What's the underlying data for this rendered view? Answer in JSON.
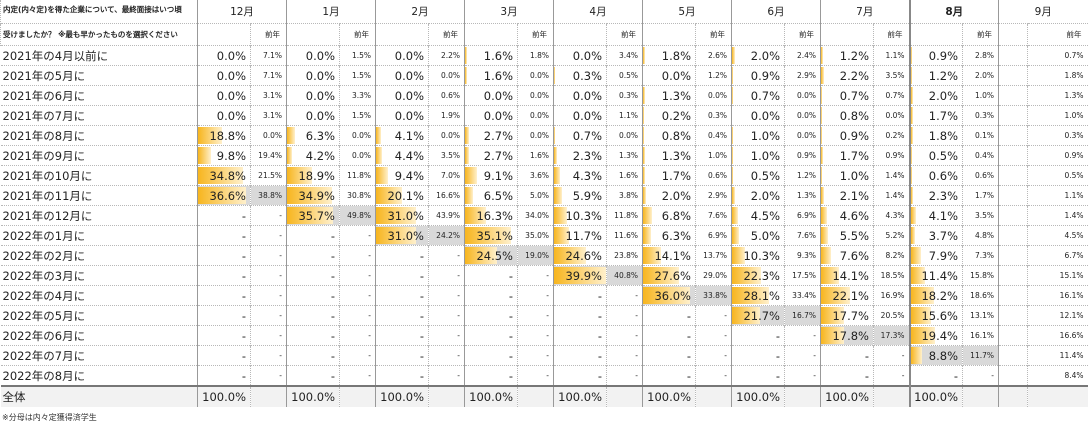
{
  "title": "内定(内々定)を得た企業について、最終面接はいつ頃",
  "subtitle": "受けましたか？ ※最も早かったものを選択ください",
  "prev_label": "前年",
  "months": [
    "12月",
    "1月",
    "2月",
    "3月",
    "4月",
    "5月",
    "6月",
    "7月",
    "8月",
    "9月"
  ],
  "highlight_month_index": 8,
  "bar_color": "#f7b51e",
  "shade_color": "#d9d9d9",
  "rows": [
    {
      "label": "2021年の4月以前に",
      "cells": [
        [
          "0.0%",
          "7.1%"
        ],
        [
          "0.0%",
          "1.5%"
        ],
        [
          "0.0%",
          "2.2%"
        ],
        [
          "1.6%",
          "1.8%"
        ],
        [
          "0.0%",
          "3.4%"
        ],
        [
          "1.8%",
          "2.6%"
        ],
        [
          "2.0%",
          "2.4%"
        ],
        [
          "1.2%",
          "1.1%"
        ],
        [
          "0.9%",
          "2.8%"
        ],
        [
          "",
          "0.7%"
        ]
      ]
    },
    {
      "label": "2021年の5月に",
      "cells": [
        [
          "0.0%",
          "7.1%"
        ],
        [
          "0.0%",
          "1.5%"
        ],
        [
          "0.0%",
          "0.0%"
        ],
        [
          "1.6%",
          "0.0%"
        ],
        [
          "0.3%",
          "0.5%"
        ],
        [
          "0.0%",
          "1.2%"
        ],
        [
          "0.9%",
          "2.9%"
        ],
        [
          "2.2%",
          "3.5%"
        ],
        [
          "1.2%",
          "2.0%"
        ],
        [
          "",
          "1.8%"
        ]
      ]
    },
    {
      "label": "2021年の6月に",
      "cells": [
        [
          "0.0%",
          "3.1%"
        ],
        [
          "0.0%",
          "3.3%"
        ],
        [
          "0.0%",
          "0.6%"
        ],
        [
          "0.0%",
          "0.0%"
        ],
        [
          "0.0%",
          "0.3%"
        ],
        [
          "1.3%",
          "0.0%"
        ],
        [
          "0.7%",
          "0.0%"
        ],
        [
          "0.7%",
          "0.7%"
        ],
        [
          "2.0%",
          "1.0%"
        ],
        [
          "",
          "1.3%"
        ]
      ]
    },
    {
      "label": "2021年の7月に",
      "cells": [
        [
          "0.0%",
          "3.1%"
        ],
        [
          "0.0%",
          "1.5%"
        ],
        [
          "0.0%",
          "1.9%"
        ],
        [
          "0.0%",
          "0.0%"
        ],
        [
          "0.0%",
          "1.1%"
        ],
        [
          "0.2%",
          "0.3%"
        ],
        [
          "0.0%",
          "0.0%"
        ],
        [
          "0.8%",
          "0.0%"
        ],
        [
          "1.7%",
          "0.3%"
        ],
        [
          "",
          "1.0%"
        ]
      ]
    },
    {
      "label": "2021年の8月に",
      "cells": [
        [
          "18.8%",
          "0.0%"
        ],
        [
          "6.3%",
          "0.0%"
        ],
        [
          "4.1%",
          "0.0%"
        ],
        [
          "2.7%",
          "0.0%"
        ],
        [
          "0.7%",
          "0.0%"
        ],
        [
          "0.8%",
          "0.4%"
        ],
        [
          "1.0%",
          "0.0%"
        ],
        [
          "0.9%",
          "0.2%"
        ],
        [
          "1.8%",
          "0.1%"
        ],
        [
          "",
          "0.3%"
        ]
      ]
    },
    {
      "label": "2021年の9月に",
      "cells": [
        [
          "9.8%",
          "19.4%"
        ],
        [
          "4.2%",
          "0.0%"
        ],
        [
          "4.4%",
          "3.5%"
        ],
        [
          "2.7%",
          "1.6%"
        ],
        [
          "2.3%",
          "1.3%"
        ],
        [
          "1.3%",
          "1.0%"
        ],
        [
          "1.0%",
          "0.9%"
        ],
        [
          "1.7%",
          "0.9%"
        ],
        [
          "0.5%",
          "0.4%"
        ],
        [
          "",
          "0.9%"
        ]
      ]
    },
    {
      "label": "2021年の10月に",
      "cells": [
        [
          "34.8%",
          "21.5%"
        ],
        [
          "18.9%",
          "11.8%"
        ],
        [
          "9.4%",
          "7.0%"
        ],
        [
          "9.1%",
          "3.6%"
        ],
        [
          "4.3%",
          "1.6%"
        ],
        [
          "1.7%",
          "0.6%"
        ],
        [
          "0.5%",
          "1.2%"
        ],
        [
          "1.0%",
          "1.4%"
        ],
        [
          "0.6%",
          "0.6%"
        ],
        [
          "",
          "0.5%"
        ]
      ]
    },
    {
      "label": "2021年の11月に",
      "cells": [
        [
          "36.6%",
          "38.8%"
        ],
        [
          "34.9%",
          "30.8%"
        ],
        [
          "20.1%",
          "16.6%"
        ],
        [
          "6.5%",
          "5.0%"
        ],
        [
          "5.9%",
          "3.8%"
        ],
        [
          "2.0%",
          "2.9%"
        ],
        [
          "2.0%",
          "1.3%"
        ],
        [
          "2.1%",
          "1.4%"
        ],
        [
          "2.3%",
          "1.7%"
        ],
        [
          "",
          "1.1%"
        ]
      ]
    },
    {
      "label": "2021年の12月に",
      "cells": [
        [
          "-",
          "-"
        ],
        [
          "35.7%",
          "49.8%"
        ],
        [
          "31.0%",
          "43.9%"
        ],
        [
          "16.3%",
          "34.0%"
        ],
        [
          "10.3%",
          "11.8%"
        ],
        [
          "6.8%",
          "7.6%"
        ],
        [
          "4.5%",
          "6.9%"
        ],
        [
          "4.6%",
          "4.3%"
        ],
        [
          "4.1%",
          "3.5%"
        ],
        [
          "",
          "1.4%"
        ]
      ]
    },
    {
      "label": "2022年の1月に",
      "cells": [
        [
          "-",
          "-"
        ],
        [
          "-",
          "-"
        ],
        [
          "31.0%",
          "24.2%"
        ],
        [
          "35.1%",
          "35.0%"
        ],
        [
          "11.7%",
          "11.6%"
        ],
        [
          "6.3%",
          "6.9%"
        ],
        [
          "5.0%",
          "7.6%"
        ],
        [
          "5.5%",
          "5.2%"
        ],
        [
          "3.7%",
          "4.8%"
        ],
        [
          "",
          "4.5%"
        ]
      ]
    },
    {
      "label": "2022年の2月に",
      "cells": [
        [
          "-",
          "-"
        ],
        [
          "-",
          "-"
        ],
        [
          "-",
          "-"
        ],
        [
          "24.5%",
          "19.0%"
        ],
        [
          "24.6%",
          "23.8%"
        ],
        [
          "14.1%",
          "13.7%"
        ],
        [
          "10.3%",
          "9.3%"
        ],
        [
          "7.6%",
          "8.2%"
        ],
        [
          "7.9%",
          "7.3%"
        ],
        [
          "",
          "6.7%"
        ]
      ]
    },
    {
      "label": "2022年の3月に",
      "cells": [
        [
          "-",
          "-"
        ],
        [
          "-",
          "-"
        ],
        [
          "-",
          "-"
        ],
        [
          "-",
          "-"
        ],
        [
          "39.9%",
          "40.8%"
        ],
        [
          "27.6%",
          "29.0%"
        ],
        [
          "22.3%",
          "17.5%"
        ],
        [
          "14.1%",
          "18.5%"
        ],
        [
          "11.4%",
          "15.8%"
        ],
        [
          "",
          "15.1%"
        ]
      ]
    },
    {
      "label": "2022年の4月に",
      "cells": [
        [
          "-",
          "-"
        ],
        [
          "-",
          "-"
        ],
        [
          "-",
          "-"
        ],
        [
          "-",
          "-"
        ],
        [
          "-",
          "-"
        ],
        [
          "36.0%",
          "33.8%"
        ],
        [
          "28.1%",
          "33.4%"
        ],
        [
          "22.1%",
          "16.9%"
        ],
        [
          "18.2%",
          "18.6%"
        ],
        [
          "",
          "16.1%"
        ]
      ]
    },
    {
      "label": "2022年の5月に",
      "cells": [
        [
          "-",
          "-"
        ],
        [
          "-",
          "-"
        ],
        [
          "-",
          "-"
        ],
        [
          "-",
          "-"
        ],
        [
          "-",
          "-"
        ],
        [
          "-",
          "-"
        ],
        [
          "21.7%",
          "16.7%"
        ],
        [
          "17.7%",
          "20.5%"
        ],
        [
          "15.6%",
          "13.1%"
        ],
        [
          "",
          "12.1%"
        ]
      ]
    },
    {
      "label": "2022年の6月に",
      "cells": [
        [
          "-",
          "-"
        ],
        [
          "-",
          "-"
        ],
        [
          "-",
          "-"
        ],
        [
          "-",
          "-"
        ],
        [
          "-",
          "-"
        ],
        [
          "-",
          "-"
        ],
        [
          "-",
          "-"
        ],
        [
          "17.8%",
          "17.3%"
        ],
        [
          "19.4%",
          "16.1%"
        ],
        [
          "",
          "16.6%"
        ]
      ]
    },
    {
      "label": "2022年の7月に",
      "cells": [
        [
          "-",
          "-"
        ],
        [
          "-",
          "-"
        ],
        [
          "-",
          "-"
        ],
        [
          "-",
          "-"
        ],
        [
          "-",
          "-"
        ],
        [
          "-",
          "-"
        ],
        [
          "-",
          "-"
        ],
        [
          "-",
          "-"
        ],
        [
          "8.8%",
          "11.7%"
        ],
        [
          "",
          "11.4%"
        ]
      ]
    },
    {
      "label": "2022年の8月に",
      "cells": [
        [
          "-",
          "-"
        ],
        [
          "-",
          "-"
        ],
        [
          "-",
          "-"
        ],
        [
          "-",
          "-"
        ],
        [
          "-",
          "-"
        ],
        [
          "-",
          "-"
        ],
        [
          "-",
          "-"
        ],
        [
          "-",
          "-"
        ],
        [
          "-",
          "-"
        ],
        [
          "",
          "8.4%"
        ]
      ]
    }
  ],
  "total": {
    "label": "全体",
    "cells": [
      [
        "100.0%",
        ""
      ],
      [
        "100.0%",
        ""
      ],
      [
        "100.0%",
        ""
      ],
      [
        "100.0%",
        ""
      ],
      [
        "100.0%",
        ""
      ],
      [
        "100.0%",
        ""
      ],
      [
        "100.0%",
        ""
      ],
      [
        "100.0%",
        ""
      ],
      [
        "100.0%",
        ""
      ],
      [
        "",
        ""
      ]
    ]
  },
  "note": "※分母は内々定獲得済学生"
}
